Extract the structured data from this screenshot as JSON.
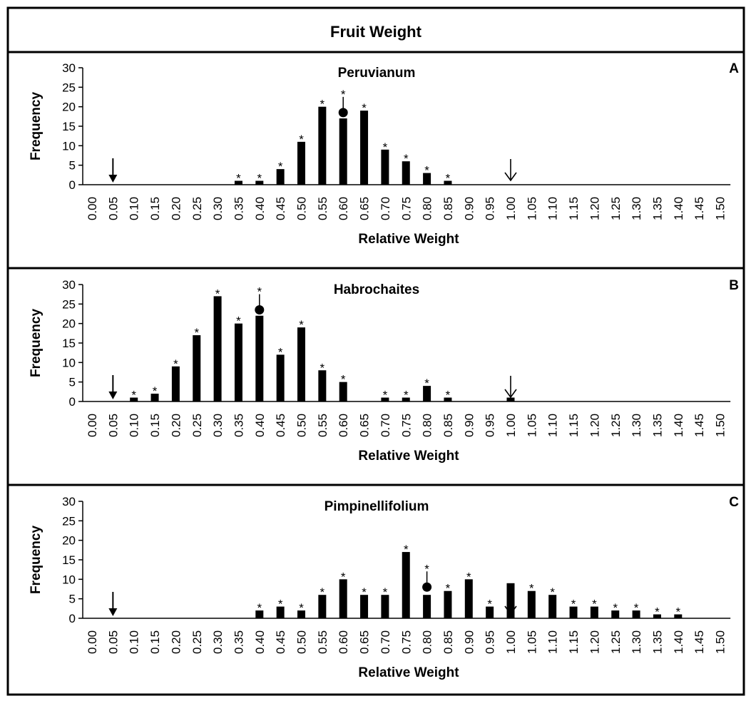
{
  "figure": {
    "title": "Fruit Weight"
  },
  "chart_data": [
    {
      "type": "bar",
      "letter": "A",
      "title": "Peruvianum",
      "xlabel": "Relative Weight",
      "ylabel": "Frequency",
      "ylim": [
        0,
        30
      ],
      "yticks": [
        "0",
        "5",
        "10",
        "15",
        "20",
        "25",
        "30"
      ],
      "categories": [
        "0.00",
        "0.05",
        "0.10",
        "0.15",
        "0.20",
        "0.25",
        "0.30",
        "0.35",
        "0.40",
        "0.45",
        "0.50",
        "0.55",
        "0.60",
        "0.65",
        "0.70",
        "0.75",
        "0.80",
        "0.85",
        "0.90",
        "0.95",
        "1.00",
        "1.05",
        "1.10",
        "1.15",
        "1.20",
        "1.25",
        "1.30",
        "1.35",
        "1.40",
        "1.45",
        "1.50"
      ],
      "values": [
        0,
        0,
        0,
        0,
        0,
        0,
        0,
        1,
        1,
        4,
        11,
        20,
        17,
        19,
        9,
        6,
        3,
        1,
        0,
        0,
        0,
        0,
        0,
        0,
        0,
        0,
        0,
        0,
        0,
        0,
        0
      ],
      "star_label": "*",
      "starred": [
        "0.35",
        "0.40",
        "0.45",
        "0.50",
        "0.55",
        "0.60",
        "0.65",
        "0.70",
        "0.75",
        "0.80",
        "0.85"
      ],
      "mean_marker": {
        "x": "0.60",
        "y": 18.5
      },
      "filled_arrow_at": "0.05",
      "open_arrow_at": "1.00",
      "grid": false,
      "legend": "none"
    },
    {
      "type": "bar",
      "letter": "B",
      "title": "Habrochaites",
      "xlabel": "Relative Weight",
      "ylabel": "Frequency",
      "ylim": [
        0,
        30
      ],
      "yticks": [
        "0",
        "5",
        "10",
        "15",
        "20",
        "25",
        "30"
      ],
      "categories": [
        "0.00",
        "0.05",
        "0.10",
        "0.15",
        "0.20",
        "0.25",
        "0.30",
        "0.35",
        "0.40",
        "0.45",
        "0.50",
        "0.55",
        "0.60",
        "0.65",
        "0.70",
        "0.75",
        "0.80",
        "0.85",
        "0.90",
        "0.95",
        "1.00",
        "1.05",
        "1.10",
        "1.15",
        "1.20",
        "1.25",
        "1.30",
        "1.35",
        "1.40",
        "1.45",
        "1.50"
      ],
      "values": [
        0,
        0,
        1,
        2,
        9,
        17,
        27,
        20,
        22,
        12,
        19,
        8,
        5,
        0,
        1,
        1,
        4,
        1,
        0,
        0,
        1,
        0,
        0,
        0,
        0,
        0,
        0,
        0,
        0,
        0,
        0
      ],
      "star_label": "*",
      "starred": [
        "0.10",
        "0.15",
        "0.20",
        "0.25",
        "0.30",
        "0.35",
        "0.40",
        "0.45",
        "0.50",
        "0.55",
        "0.60",
        "0.70",
        "0.75",
        "0.80",
        "0.85"
      ],
      "mean_marker": {
        "x": "0.40",
        "y": 23.5
      },
      "filled_arrow_at": "0.05",
      "open_arrow_at": "1.00",
      "grid": false,
      "legend": "none"
    },
    {
      "type": "bar",
      "letter": "C",
      "title": "Pimpinellifolium",
      "xlabel": "Relative Weight",
      "ylabel": "Frequency",
      "ylim": [
        0,
        30
      ],
      "yticks": [
        "0",
        "5",
        "10",
        "15",
        "20",
        "25",
        "30"
      ],
      "categories": [
        "0.00",
        "0.05",
        "0.10",
        "0.15",
        "0.20",
        "0.25",
        "0.30",
        "0.35",
        "0.40",
        "0.45",
        "0.50",
        "0.55",
        "0.60",
        "0.65",
        "0.70",
        "0.75",
        "0.80",
        "0.85",
        "0.90",
        "0.95",
        "1.00",
        "1.05",
        "1.10",
        "1.15",
        "1.20",
        "1.25",
        "1.30",
        "1.35",
        "1.40",
        "1.45",
        "1.50"
      ],
      "values": [
        0,
        0,
        0,
        0,
        0,
        0,
        0,
        0,
        2,
        3,
        2,
        6,
        10,
        6,
        6,
        17,
        6,
        7,
        10,
        3,
        9,
        7,
        6,
        3,
        3,
        2,
        2,
        1,
        1,
        0,
        0
      ],
      "star_label": "*",
      "starred": [
        "0.40",
        "0.45",
        "0.50",
        "0.55",
        "0.60",
        "0.65",
        "0.70",
        "0.75",
        "0.80",
        "0.85",
        "0.90",
        "0.95",
        "1.05",
        "1.10",
        "1.15",
        "1.20",
        "1.25",
        "1.30",
        "1.35",
        "1.40"
      ],
      "mean_marker": {
        "x": "0.80",
        "y": 8
      },
      "filled_arrow_at": "0.05",
      "open_arrow_at": "1.00",
      "grid": false,
      "legend": "none"
    }
  ]
}
